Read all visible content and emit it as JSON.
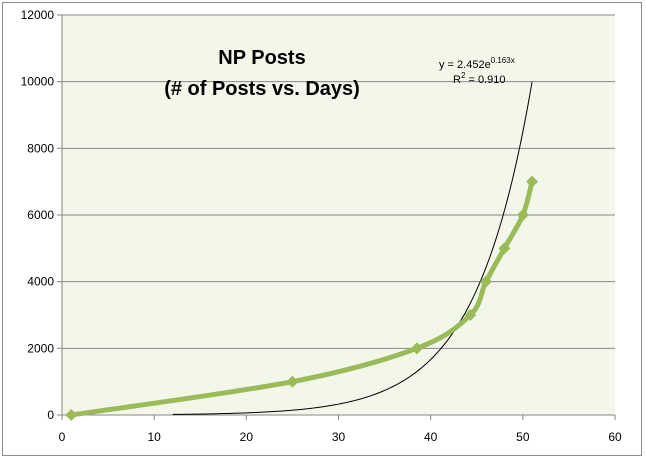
{
  "chart_data": {
    "type": "scatter",
    "title": "NP Posts",
    "subtitle": "(# of Posts vs. Days)",
    "xlabel": "",
    "ylabel": "",
    "xlim": [
      0,
      60
    ],
    "ylim": [
      0,
      12000
    ],
    "x_ticks": [
      0,
      10,
      20,
      30,
      40,
      50,
      60
    ],
    "y_ticks": [
      0,
      2000,
      4000,
      6000,
      8000,
      10000,
      12000
    ],
    "x_tick_labels": [
      "0",
      "10",
      "20",
      "30",
      "40",
      "50",
      "60"
    ],
    "y_tick_labels": [
      "0",
      "2000",
      "4000",
      "6000",
      "8000",
      "10000",
      "12000"
    ],
    "grid": "horizontal",
    "legend": "none",
    "plot_background": "#f2f7e9",
    "series": [
      {
        "values_x": [
          1,
          25,
          38.5,
          44.3,
          46,
          48,
          50,
          51
        ],
        "values_y": [
          0,
          1000,
          2000,
          3000,
          4000,
          5000,
          6000,
          7000
        ],
        "color": "#9bbb59",
        "marker": "diamond",
        "smooth": true
      }
    ],
    "trendline": {
      "type": "exponential",
      "a": 2.452,
      "b": 0.163,
      "x_range": [
        12,
        51
      ],
      "color": "#000000"
    },
    "annotations": {
      "equation_prefix": "y = 2.452e",
      "equation_exponent": "0.163x",
      "r_squared_prefix": "R",
      "r_squared_sup": "2",
      "r_squared_suffix": " = 0.910"
    }
  }
}
